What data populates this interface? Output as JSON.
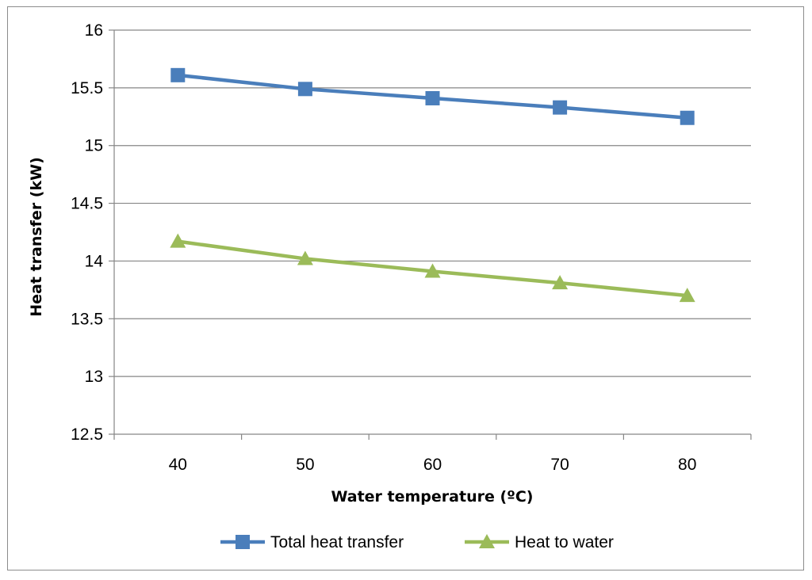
{
  "chart_data": {
    "type": "line",
    "title": "",
    "xlabel": "Water temperature (ºC)",
    "ylabel": "Heat transfer (kW)",
    "categories": [
      "40",
      "50",
      "60",
      "70",
      "80"
    ],
    "ylim": [
      12.5,
      16
    ],
    "yticks": [
      12.5,
      13,
      13.5,
      14,
      14.5,
      15,
      15.5,
      16
    ],
    "ytick_labels": [
      "12.5",
      "13",
      "13.5",
      "14",
      "14.5",
      "15",
      "15.5",
      "16"
    ],
    "grid": true,
    "legend_position": "bottom",
    "series": [
      {
        "name": "Total heat transfer",
        "values": [
          15.61,
          15.49,
          15.41,
          15.33,
          15.24
        ],
        "color": "#4a7ebb",
        "marker": "square"
      },
      {
        "name": "Heat to water",
        "values": [
          14.17,
          14.02,
          13.91,
          13.81,
          13.7
        ],
        "color": "#9bbb59",
        "marker": "triangle"
      }
    ]
  }
}
